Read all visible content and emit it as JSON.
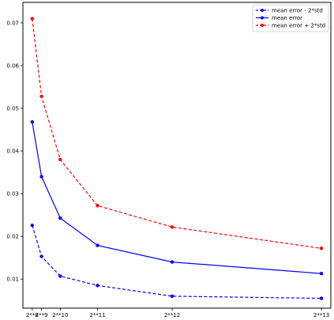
{
  "chart_data": {
    "type": "line",
    "x_tick_labels": [
      "2**8",
      "2**9",
      "2**10",
      "2**11",
      "2**12",
      "2**13"
    ],
    "x": [
      256,
      512,
      1024,
      2048,
      4096,
      8192
    ],
    "xlim": [
      0,
      8450
    ],
    "y_tick_labels": [
      "0.01",
      "0.02",
      "0.03",
      "0.04",
      "0.05",
      "0.06",
      "0.07"
    ],
    "yticks": [
      0.01,
      0.02,
      0.03,
      0.04,
      0.05,
      0.06,
      0.07
    ],
    "ylim": [
      0.0032,
      0.0748
    ],
    "grid": false,
    "legend_position": "top-right",
    "series": [
      {
        "name": "mean error - 2*std",
        "color": "#0000ff",
        "style": "dashed",
        "values": [
          0.0226,
          0.0153,
          0.0107,
          0.0085,
          0.006,
          0.0055
        ]
      },
      {
        "name": "mean error",
        "color": "#0000ff",
        "style": "solid",
        "values": [
          0.0468,
          0.034,
          0.0243,
          0.0179,
          0.014,
          0.0113
        ]
      },
      {
        "name": "mean error + 2*std",
        "color": "#ff0000",
        "style": "dashed",
        "values": [
          0.071,
          0.0528,
          0.038,
          0.0272,
          0.0222,
          0.0172
        ]
      }
    ]
  }
}
